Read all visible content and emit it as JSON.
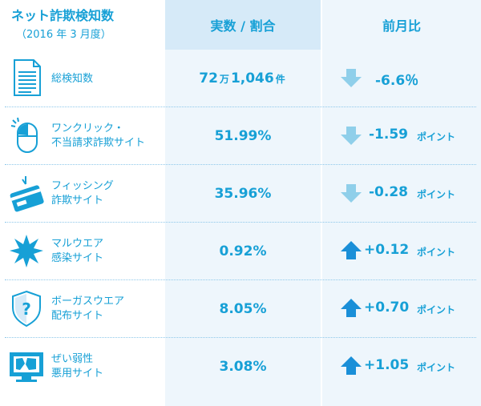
{
  "header": {
    "title": "ネット詐欺検知数",
    "subtitle": "（2016 年 3 月度）",
    "value_col": "実数 / 割合",
    "change_col": "前月比"
  },
  "colors": {
    "accent": "#17a0d6",
    "header_bg": "#d6eaf8",
    "column_bg": "#eef6fc",
    "arrow_down": "#8fcfea",
    "arrow_up": "#1a8fd8"
  },
  "rows": [
    {
      "label1": "総検知数",
      "label2": "",
      "value_main": "72",
      "value_unit1": "万",
      "value_rest": "1,046",
      "value_unit2": "件",
      "change": "-6.6％",
      "change_unit": "",
      "direction": "down",
      "icon": "document-icon"
    },
    {
      "label1": "ワンクリック・",
      "label2": "不当請求詐欺サイト",
      "value": "51.99%",
      "change": "-1.59",
      "change_unit": "ポイント",
      "direction": "down",
      "icon": "mouse-icon"
    },
    {
      "label1": "フィッシング",
      "label2": "詐欺サイト",
      "value": "35.96%",
      "change": "-0.28",
      "change_unit": "ポイント",
      "direction": "down",
      "icon": "credit-card-icon"
    },
    {
      "label1": "マルウエア",
      "label2": "感染サイト",
      "value": "0.92%",
      "change": "+0.12",
      "change_unit": "ポイント",
      "direction": "up",
      "icon": "malware-burst-icon"
    },
    {
      "label1": "ボーガスウエア",
      "label2": "配布サイト",
      "value": "8.05%",
      "change": "+0.70",
      "change_unit": "ポイント",
      "direction": "up",
      "icon": "question-shield-icon"
    },
    {
      "label1": "ぜい弱性",
      "label2": "悪用サイト",
      "value": "3.08%",
      "change": "+1.05",
      "change_unit": "ポイント",
      "direction": "up",
      "icon": "broken-screen-icon"
    }
  ]
}
